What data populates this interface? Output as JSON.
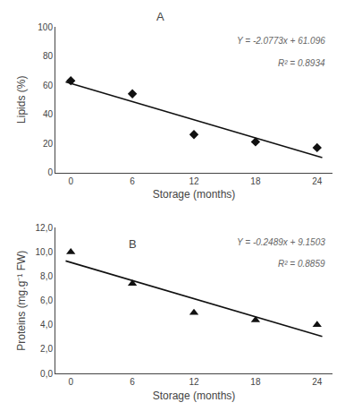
{
  "chart_data": [
    {
      "type": "scatter",
      "title": "A",
      "xlabel": "Storage (months)",
      "ylabel": "Lipids (%)",
      "xlim": [
        -1.5,
        25.5
      ],
      "xticks": [
        0,
        6,
        12,
        18,
        24
      ],
      "ylim": [
        0,
        100
      ],
      "yticks": [
        0,
        20,
        40,
        60,
        80,
        100
      ],
      "grid": false,
      "series": [
        {
          "type": "line",
          "color": "#111111",
          "x": [
            -0.5,
            24.5
          ],
          "values": [
            62.13465,
            10.20215
          ]
        },
        {
          "type": "scatter",
          "marker": "diamond",
          "color": "#111111",
          "x": [
            0,
            6,
            12,
            18,
            24
          ],
          "values": [
            63,
            54,
            26,
            21,
            17
          ]
        }
      ],
      "annotations": [
        {
          "text": "Y = -2.0773x + 61.096",
          "color": "#666666"
        },
        {
          "text": "R² = 0.8934",
          "color": "#666666"
        }
      ]
    },
    {
      "type": "scatter",
      "title": "B",
      "xlabel": "Storage (months)",
      "ylabel": "Proteins (mg.g⁻¹ FW)",
      "xlim": [
        -1.5,
        25.5
      ],
      "xticks": [
        0,
        6,
        12,
        18,
        24
      ],
      "ylim": [
        0,
        12
      ],
      "yticks": [
        {
          "value": 0.0,
          "label": "0,0"
        },
        {
          "value": 2.0,
          "label": "2,0"
        },
        {
          "value": 4.0,
          "label": "4,0"
        },
        {
          "value": 6.0,
          "label": "6,0"
        },
        {
          "value": 8.0,
          "label": "8,0"
        },
        {
          "value": 10.0,
          "label": "10,0"
        },
        {
          "value": 12.0,
          "label": "12,0"
        }
      ],
      "grid": false,
      "series": [
        {
          "type": "line",
          "color": "#111111",
          "x": [
            -0.5,
            24.5
          ],
          "values": [
            9.27475,
            3.05225
          ]
        },
        {
          "type": "scatter",
          "marker": "triangle-up",
          "color": "#111111",
          "x": [
            0,
            6,
            12,
            18,
            24
          ],
          "values": [
            10.0,
            7.4,
            5.0,
            4.4,
            4.0
          ]
        }
      ],
      "annotations": [
        {
          "text": "Y = -0.2489x + 9.1503",
          "color": "#666666"
        },
        {
          "text": "R² = 0.8859",
          "color": "#666666"
        }
      ]
    }
  ]
}
